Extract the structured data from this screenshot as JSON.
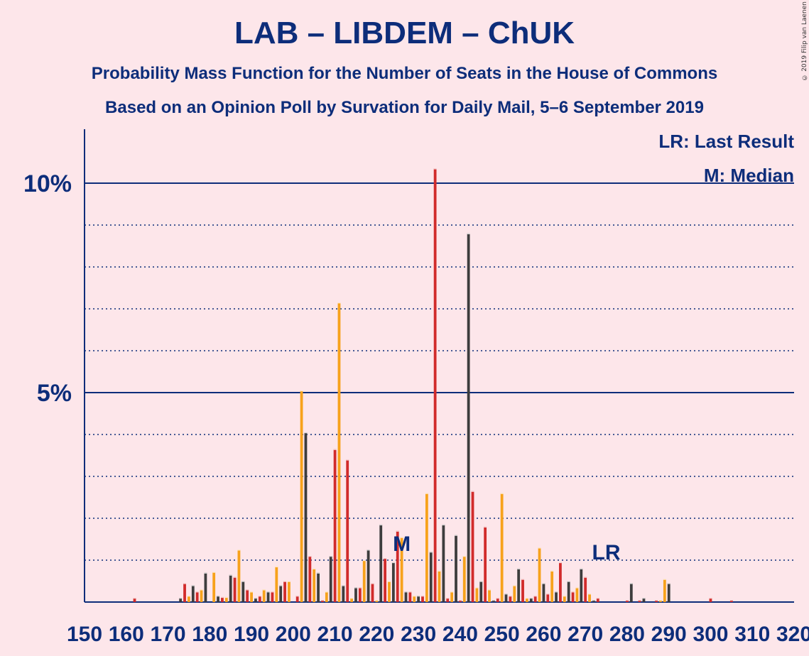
{
  "title": "LAB – LIBDEM – ChUK",
  "subtitle1": "Probability Mass Function for the Number of Seats in the House of Commons",
  "subtitle2": "Based on an Opinion Poll by Survation for Daily Mail, 5–6 September 2019",
  "copyright": "© 2019 Filip van Laenen",
  "legend": {
    "lr": "LR: Last Result",
    "m": "M: Median"
  },
  "colors": {
    "background": "#fde6ea",
    "text": "#0d2d7a",
    "lab": "#d12b2b",
    "libdem": "#f7a21b",
    "chuk": "#3d3d3d"
  },
  "chart_data": {
    "type": "bar",
    "xlim": [
      150,
      320
    ],
    "ylim": [
      0,
      11
    ],
    "y_ticks": [
      {
        "value": 5,
        "label": "5%"
      },
      {
        "value": 10,
        "label": "10%"
      }
    ],
    "x_tick_labels": [
      "150",
      "160",
      "170",
      "180",
      "190",
      "200",
      "210",
      "220",
      "230",
      "240",
      "250",
      "260",
      "270",
      "280",
      "290",
      "300",
      "310",
      "320"
    ],
    "annotations": {
      "median": {
        "x": 226,
        "label": "M"
      },
      "last_result": {
        "x": 275,
        "label": "LR"
      }
    },
    "points": [
      [
        162,
        0.1,
        "lab"
      ],
      [
        173,
        0.1,
        "chuk"
      ],
      [
        174,
        0.45,
        "lab"
      ],
      [
        175,
        0.15,
        "libdem"
      ],
      [
        176,
        0.4,
        "chuk"
      ],
      [
        177,
        0.25,
        "lab"
      ],
      [
        178,
        0.3,
        "libdem"
      ],
      [
        179,
        0.7,
        "chuk"
      ],
      [
        181,
        0.72,
        "libdem"
      ],
      [
        182,
        0.15,
        "chuk"
      ],
      [
        183,
        0.12,
        "lab"
      ],
      [
        184,
        0.12,
        "libdem"
      ],
      [
        185,
        0.65,
        "chuk"
      ],
      [
        186,
        0.6,
        "lab"
      ],
      [
        187,
        1.25,
        "libdem"
      ],
      [
        188,
        0.5,
        "chuk"
      ],
      [
        189,
        0.3,
        "lab"
      ],
      [
        190,
        0.25,
        "libdem"
      ],
      [
        191,
        0.1,
        "chuk"
      ],
      [
        192,
        0.15,
        "lab"
      ],
      [
        193,
        0.3,
        "libdem"
      ],
      [
        194,
        0.25,
        "chuk"
      ],
      [
        195,
        0.25,
        "lab"
      ],
      [
        196,
        0.85,
        "libdem"
      ],
      [
        197,
        0.4,
        "chuk"
      ],
      [
        198,
        0.5,
        "lab"
      ],
      [
        199,
        0.5,
        "libdem"
      ],
      [
        201,
        0.15,
        "lab"
      ],
      [
        202,
        5.05,
        "libdem"
      ],
      [
        203,
        4.05,
        "chuk"
      ],
      [
        204,
        1.1,
        "lab"
      ],
      [
        205,
        0.8,
        "libdem"
      ],
      [
        206,
        0.7,
        "chuk"
      ],
      [
        207,
        0.05,
        "lab"
      ],
      [
        208,
        0.25,
        "libdem"
      ],
      [
        209,
        1.1,
        "chuk"
      ],
      [
        210,
        3.65,
        "lab"
      ],
      [
        211,
        7.15,
        "libdem"
      ],
      [
        212,
        0.4,
        "chuk"
      ],
      [
        213,
        3.4,
        "lab"
      ],
      [
        214,
        0.1,
        "libdem"
      ],
      [
        215,
        0.35,
        "chuk"
      ],
      [
        216,
        0.35,
        "lab"
      ],
      [
        217,
        1.0,
        "libdem"
      ],
      [
        218,
        1.25,
        "chuk"
      ],
      [
        219,
        0.45,
        "lab"
      ],
      [
        220,
        0.05,
        "libdem"
      ],
      [
        221,
        1.85,
        "chuk"
      ],
      [
        222,
        1.05,
        "lab"
      ],
      [
        223,
        0.5,
        "libdem"
      ],
      [
        224,
        0.95,
        "chuk"
      ],
      [
        225,
        1.7,
        "lab"
      ],
      [
        226,
        1.55,
        "libdem"
      ],
      [
        227,
        0.25,
        "chuk"
      ],
      [
        228,
        0.25,
        "lab"
      ],
      [
        229,
        0.15,
        "libdem"
      ],
      [
        230,
        0.15,
        "chuk"
      ],
      [
        231,
        0.15,
        "lab"
      ],
      [
        232,
        2.6,
        "libdem"
      ],
      [
        233,
        1.2,
        "chuk"
      ],
      [
        234,
        10.35,
        "lab"
      ],
      [
        235,
        0.75,
        "libdem"
      ],
      [
        236,
        1.85,
        "chuk"
      ],
      [
        237,
        0.1,
        "lab"
      ],
      [
        238,
        0.25,
        "libdem"
      ],
      [
        239,
        1.6,
        "chuk"
      ],
      [
        240,
        0.05,
        "lab"
      ],
      [
        241,
        1.1,
        "libdem"
      ],
      [
        242,
        8.8,
        "chuk"
      ],
      [
        243,
        2.65,
        "lab"
      ],
      [
        244,
        0.35,
        "libdem"
      ],
      [
        245,
        0.5,
        "chuk"
      ],
      [
        246,
        1.8,
        "lab"
      ],
      [
        247,
        0.3,
        "libdem"
      ],
      [
        248,
        0.05,
        "chuk"
      ],
      [
        249,
        0.1,
        "lab"
      ],
      [
        250,
        2.6,
        "libdem"
      ],
      [
        251,
        0.2,
        "chuk"
      ],
      [
        252,
        0.15,
        "lab"
      ],
      [
        253,
        0.4,
        "libdem"
      ],
      [
        254,
        0.8,
        "chuk"
      ],
      [
        255,
        0.55,
        "lab"
      ],
      [
        256,
        0.1,
        "libdem"
      ],
      [
        257,
        0.1,
        "chuk"
      ],
      [
        258,
        0.15,
        "lab"
      ],
      [
        259,
        1.3,
        "libdem"
      ],
      [
        260,
        0.45,
        "chuk"
      ],
      [
        261,
        0.2,
        "lab"
      ],
      [
        262,
        0.75,
        "libdem"
      ],
      [
        263,
        0.25,
        "chuk"
      ],
      [
        264,
        0.95,
        "lab"
      ],
      [
        265,
        0.15,
        "libdem"
      ],
      [
        266,
        0.5,
        "chuk"
      ],
      [
        267,
        0.25,
        "lab"
      ],
      [
        268,
        0.35,
        "libdem"
      ],
      [
        269,
        0.8,
        "chuk"
      ],
      [
        270,
        0.6,
        "lab"
      ],
      [
        271,
        0.2,
        "libdem"
      ],
      [
        272,
        0.05,
        "chuk"
      ],
      [
        273,
        0.1,
        "lab"
      ],
      [
        280,
        0.05,
        "lab"
      ],
      [
        281,
        0.45,
        "chuk"
      ],
      [
        283,
        0.05,
        "lab"
      ],
      [
        284,
        0.1,
        "chuk"
      ],
      [
        287,
        0.05,
        "lab"
      ],
      [
        288,
        0.05,
        "libdem"
      ],
      [
        289,
        0.55,
        "libdem"
      ],
      [
        290,
        0.45,
        "chuk"
      ],
      [
        300,
        0.1,
        "lab"
      ],
      [
        305,
        0.05,
        "lab"
      ]
    ]
  }
}
